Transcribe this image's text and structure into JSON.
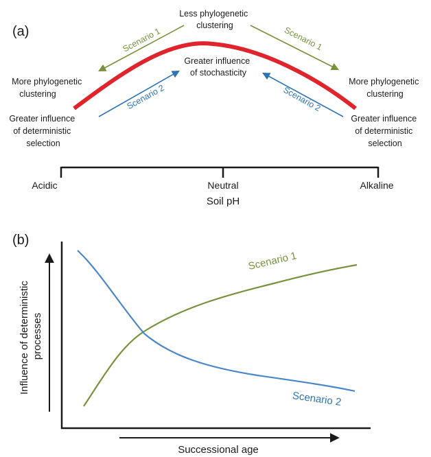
{
  "panel_a": {
    "label": "(a)",
    "top_label": [
      "Less phylogenetic",
      "clustering"
    ],
    "center_label": [
      "Greater influence",
      "of stochasticity"
    ],
    "left_upper": [
      "More phylogenetic",
      "clustering"
    ],
    "left_lower": [
      "Greater influence",
      "of deterministic",
      "selection"
    ],
    "right_upper": [
      "More phylogenetic",
      "clustering"
    ],
    "right_lower": [
      "Greater influence",
      "of deterministic",
      "selection"
    ],
    "arrows": {
      "left_green": "Scenario 1",
      "left_blue": "Scenario 2",
      "right_green": "Scenario 1",
      "right_blue": "Scenario 2"
    },
    "axis": {
      "title": "Soil pH",
      "ticks": [
        "Acidic",
        "Neutral",
        "Alkaline"
      ]
    }
  },
  "panel_b": {
    "label": "(b)",
    "ylabel": [
      "Influence of deterministic",
      "processes"
    ],
    "xlabel": "Successional age",
    "series": [
      {
        "name": "Scenario 1",
        "trend": "increasing",
        "color": "#76923c"
      },
      {
        "name": "Scenario 2",
        "trend": "decreasing",
        "color": "#4a86c8"
      }
    ]
  },
  "colors": {
    "curve_red": "#e0242b",
    "green": "#76923c",
    "blue": "#2e74b5",
    "axis": "#1a1a1a"
  }
}
